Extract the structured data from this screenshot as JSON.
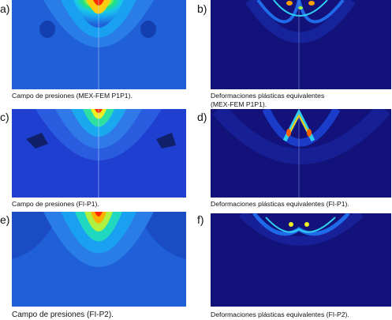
{
  "panels": [
    {
      "letter": "a)",
      "caption": "Campo de presiones (MEX-FEM P1P1)."
    },
    {
      "letter": "b)",
      "caption": "Deformaciones plásticas equivalentes\n(MEX-FEM P1P1)."
    },
    {
      "letter": "c)",
      "caption": "Campo de presiones (FI-P1)."
    },
    {
      "letter": "d)",
      "caption": "Deformaciones plásticas equivalentes (FI-P1)."
    },
    {
      "letter": "e)",
      "caption": "Campo de presiones (FI-P2)."
    },
    {
      "letter": "f)",
      "caption": "Deformaciones plásticas equivalentes (FI-P2)."
    }
  ],
  "colors": {
    "pressure_background": "#1f5fd8",
    "strain_background": "#12127a"
  }
}
